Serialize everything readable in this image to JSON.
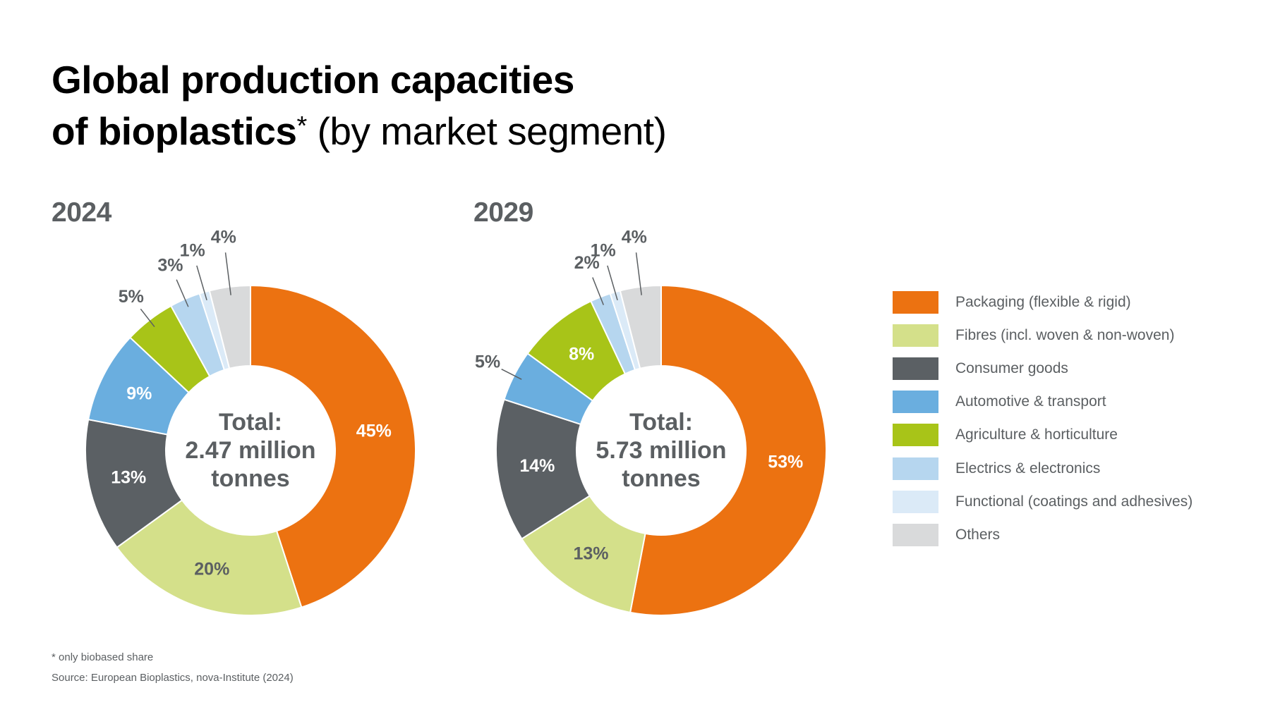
{
  "title": {
    "line1": "Global production capacities",
    "line2_bold": "of bioplastics",
    "asterisk": "*",
    "line2_rest": " (by market segment)"
  },
  "footnote": "* only biobased share",
  "source": "Source: European Bioplastics, nova-Institute (2024)",
  "colors": {
    "Packaging (flexible & rigid)": "#ec7211",
    "Fibres (incl. woven & non-woven)": "#d4e08a",
    "Consumer goods": "#5b6064",
    "Automotive & transport": "#6aaedf",
    "Agriculture & horticulture": "#a8c418",
    "Electrics & electronics": "#b6d6ef",
    "Functional (coatings and adhesives)": "#dbeaf7",
    "Others": "#d9dadb"
  },
  "legend": [
    "Packaging (flexible & rigid)",
    "Fibres (incl. woven & non-woven)",
    "Consumer goods",
    "Automotive & transport",
    "Agriculture & horticulture",
    "Electrics & electronics",
    "Functional (coatings and adhesives)",
    "Others"
  ],
  "chart_data": [
    {
      "type": "pie",
      "year_label": "2024",
      "center_text": [
        "Total:",
        "2.47 million",
        "tonnes"
      ],
      "categories": [
        "Packaging (flexible & rigid)",
        "Fibres (incl. woven & non-woven)",
        "Consumer goods",
        "Automotive & transport",
        "Agriculture & horticulture",
        "Electrics & electronics",
        "Functional (coatings and adhesives)",
        "Others"
      ],
      "values": [
        45,
        20,
        13,
        9,
        5,
        3,
        1,
        4
      ],
      "labels": [
        "45%",
        "20%",
        "13%",
        "9%",
        "5%",
        "3%",
        "1%",
        "4%"
      ]
    },
    {
      "type": "pie",
      "year_label": "2029",
      "center_text": [
        "Total:",
        "5.73 million",
        "tonnes"
      ],
      "categories": [
        "Packaging (flexible & rigid)",
        "Fibres (incl. woven & non-woven)",
        "Consumer goods",
        "Automotive & transport",
        "Agriculture & horticulture",
        "Electrics & electronics",
        "Functional (coatings and adhesives)",
        "Others"
      ],
      "values": [
        53,
        13,
        14,
        5,
        8,
        2,
        1,
        4
      ],
      "labels": [
        "53%",
        "13%",
        "14%",
        "5%",
        "8%",
        "2%",
        "1%",
        "4%"
      ]
    }
  ]
}
